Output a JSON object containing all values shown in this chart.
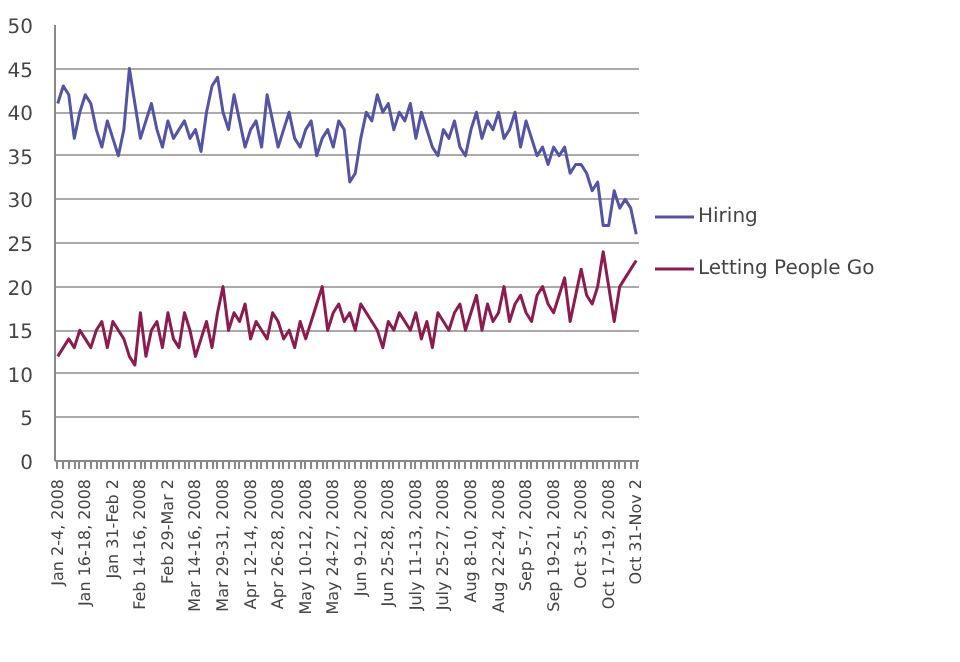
{
  "chart_data": {
    "type": "line",
    "categories": [
      "Jan 2-4, 2008",
      null,
      null,
      null,
      null,
      "Jan 16-18, 2008",
      null,
      null,
      null,
      null,
      "Jan 31-Feb 2",
      null,
      null,
      null,
      null,
      "Feb 14-16, 2008",
      null,
      null,
      null,
      null,
      "Feb 29-Mar 2",
      null,
      null,
      null,
      null,
      "Mar 14-16, 2008",
      null,
      null,
      null,
      null,
      "Mar 29-31, 2008",
      null,
      null,
      null,
      null,
      "Apr 12-14, 2008",
      null,
      null,
      null,
      null,
      "Apr 26-28, 2008",
      null,
      null,
      null,
      null,
      "May 10-12, 2008",
      null,
      null,
      null,
      null,
      "May 24-27, 2008",
      null,
      null,
      null,
      null,
      "Jun 9-12, 2008",
      null,
      null,
      null,
      null,
      "Jun 25-28, 2008",
      null,
      null,
      null,
      null,
      "July 11-13, 2008",
      null,
      null,
      null,
      null,
      "July 25-27, 2008",
      null,
      null,
      null,
      null,
      "Aug 8-10, 2008",
      null,
      null,
      null,
      null,
      "Aug 22-24, 2008",
      null,
      null,
      null,
      null,
      "Sep 5-7, 2008",
      null,
      null,
      null,
      null,
      "Sep 19-21, 2008",
      null,
      null,
      null,
      null,
      "Oct 3-5, 2008",
      null,
      null,
      null,
      null,
      "Oct 17-19, 2008",
      null,
      null,
      null,
      null,
      "Oct 31-Nov 2"
    ],
    "series": [
      {
        "name": "Hiring",
        "color": "#5454a4",
        "values": [
          41,
          43,
          42,
          37,
          40,
          42,
          41,
          38,
          36,
          39,
          37,
          35,
          38,
          45,
          41,
          37,
          39,
          41,
          38,
          36,
          39,
          37,
          38,
          39,
          37,
          38,
          35.5,
          40,
          43,
          44,
          40,
          38,
          42,
          39,
          36,
          38,
          39,
          36,
          42,
          39,
          36,
          38,
          40,
          37,
          36,
          38,
          39,
          35,
          37,
          38,
          36,
          39,
          38,
          32,
          33,
          37,
          40,
          39,
          42,
          40,
          41,
          38,
          40,
          39,
          41,
          37,
          40,
          38,
          36,
          35,
          38,
          37,
          39,
          36,
          35,
          38,
          40,
          37,
          39,
          38,
          40,
          37,
          38,
          40,
          36,
          39,
          37,
          35,
          36,
          34,
          36,
          35,
          36,
          33,
          34,
          34,
          33,
          31,
          32,
          27,
          27,
          31,
          29,
          30,
          29,
          26
        ]
      },
      {
        "name": "Letting People Go",
        "color": "#8c1c50",
        "values": [
          12,
          13,
          14,
          13,
          15,
          14,
          13,
          15,
          16,
          13,
          16,
          15,
          14,
          12,
          11,
          17,
          12,
          15,
          16,
          13,
          17,
          14,
          13,
          17,
          15,
          12,
          14,
          16,
          13,
          17,
          20,
          15,
          17,
          16,
          18,
          14,
          16,
          15,
          14,
          17,
          16,
          14,
          15,
          13,
          16,
          14,
          16,
          18,
          20,
          15,
          17,
          18,
          16,
          17,
          15,
          18,
          17,
          16,
          15,
          13,
          16,
          15,
          17,
          16,
          15,
          17,
          14,
          16,
          13,
          17,
          16,
          15,
          17,
          18,
          15,
          17,
          19,
          15,
          18,
          16,
          17,
          20,
          16,
          18,
          19,
          17,
          16,
          19,
          20,
          18,
          17,
          19,
          21,
          16,
          19,
          22,
          19,
          18,
          20,
          24,
          20,
          16,
          20,
          21,
          22,
          23
        ]
      }
    ],
    "ylim": [
      0,
      50
    ],
    "yticks": [
      0,
      5,
      10,
      15,
      20,
      25,
      30,
      35,
      40,
      45,
      50
    ],
    "grid": "y",
    "legend": "right"
  }
}
